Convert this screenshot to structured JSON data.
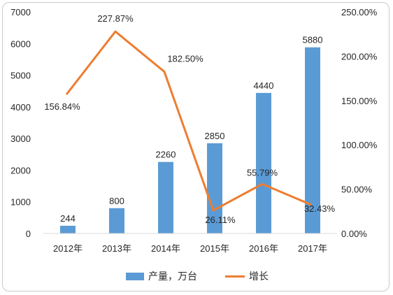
{
  "chart_data": {
    "type": "bar",
    "categories": [
      "2012年",
      "2013年",
      "2014年",
      "2015年",
      "2016年",
      "2017年"
    ],
    "series": [
      {
        "name": "产量，万台",
        "type": "bar",
        "axis": "left",
        "color": "#5B9BD5",
        "values": [
          244,
          800,
          2260,
          2850,
          4440,
          5880
        ],
        "labels": [
          "244",
          "800",
          "2260",
          "2850",
          "4440",
          "5880"
        ]
      },
      {
        "name": "增长",
        "type": "line",
        "axis": "right",
        "color": "#ED7D31",
        "values": [
          156.84,
          227.87,
          182.5,
          26.11,
          55.79,
          32.43
        ],
        "labels": [
          "156.84%",
          "227.87%",
          "182.50%",
          "26.11%",
          "55.79%",
          "32.43%"
        ]
      }
    ],
    "y_left": {
      "ylim": [
        0,
        7000
      ],
      "ticks": [
        "0",
        "1000",
        "2000",
        "3000",
        "4000",
        "5000",
        "6000",
        "7000"
      ]
    },
    "y_right": {
      "ylim": [
        0,
        250
      ],
      "ticks": [
        "0.00%",
        "50.00%",
        "100.00%",
        "150.00%",
        "200.00%",
        "250.00%"
      ]
    },
    "grid": false,
    "legend_position": "bottom"
  }
}
